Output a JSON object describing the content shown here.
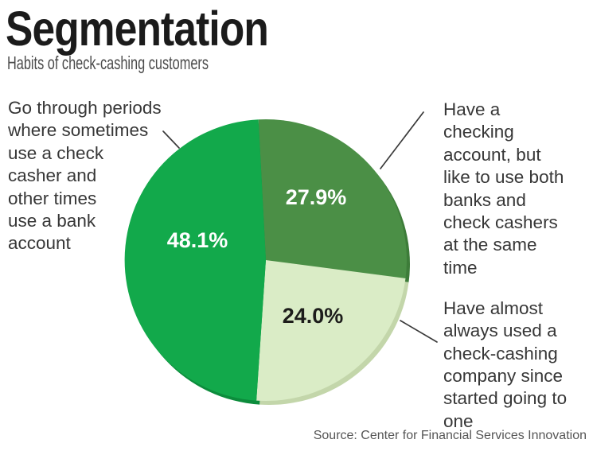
{
  "header": {
    "title": "Segmentation",
    "subtitle": "Habits of check-cashing customers"
  },
  "source_line": "Source: Center for Financial Services Innovation",
  "colors": {
    "slice_bright_green": "#12a94b",
    "slice_dark_green": "#4b8f46",
    "slice_light_green": "#daecc6",
    "rim_bright_green": "#0c8c3c",
    "rim_dark_green": "#3d7c39",
    "rim_light_green": "#c3d6aa",
    "leader_line": "#3a3a3a",
    "title_text": "#1b1b1b",
    "annotation_text": "#373737"
  },
  "chart_data": {
    "type": "pie",
    "title": "Segmentation",
    "subtitle": "Habits of check-cashing customers",
    "start_angle_deg": -3,
    "direction": "clockwise",
    "legend_position": "none",
    "slices": [
      {
        "label": "Have a checking account, but like to use both banks and check cashers at the same time",
        "value": 27.9,
        "display": "27.9%",
        "color": "#4b8f46",
        "shadow_color": "#3d7c39",
        "value_color": "#ffffff"
      },
      {
        "label": "Have almost always used a check-cashing company since started going to one",
        "value": 24.0,
        "display": "24.0%",
        "color": "#daecc6",
        "shadow_color": "#c3d6aa",
        "value_color": "#1d1d1b"
      },
      {
        "label": "Go through periods where sometimes use a check casher and other times use a bank account",
        "value": 48.1,
        "display": "48.1%",
        "color": "#12a94b",
        "shadow_color": "#0c8c3c",
        "value_color": "#ffffff"
      }
    ],
    "source": "Source: Center for Financial Services Innovation"
  },
  "annotations": {
    "left": {
      "lines": [
        "Go through periods",
        "where sometimes",
        "use a check",
        "casher and",
        "other times",
        "use a bank",
        "account"
      ]
    },
    "top_right": {
      "lines": [
        "Have a",
        "checking",
        "account, but",
        "like to use both",
        "banks and",
        "check cashers",
        "at the same",
        "time"
      ]
    },
    "bottom_right": {
      "lines": [
        "Have almost",
        "always used a",
        "check-cashing",
        "company since",
        "started going to",
        "one"
      ]
    }
  }
}
